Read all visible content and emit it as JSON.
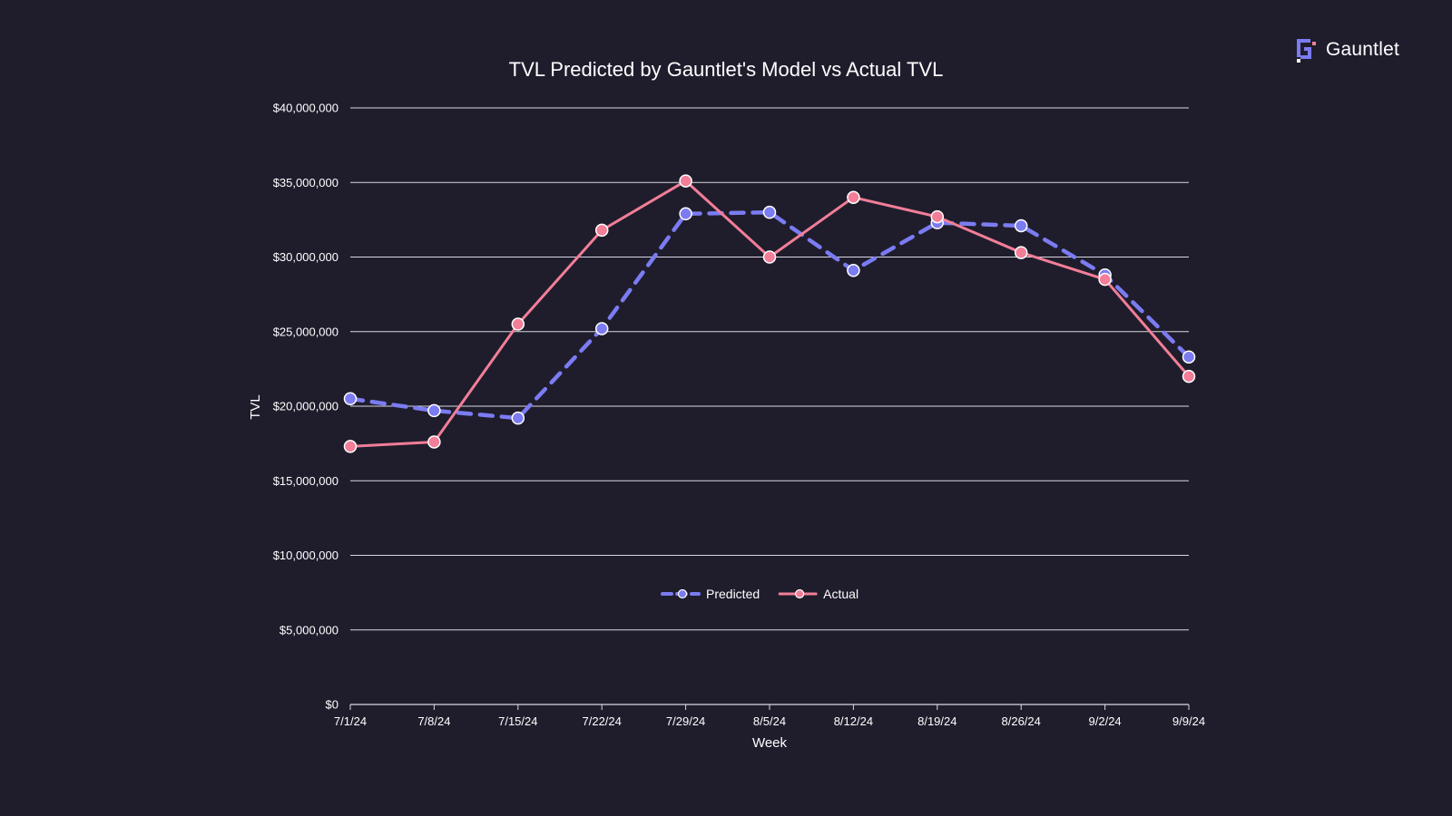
{
  "brand": {
    "name": "Gauntlet",
    "logo_icon": "gauntlet-logo-icon",
    "logo_color": "#7b7cf2",
    "logo_accent": "#f27e98"
  },
  "colors": {
    "background": "#1f1d2c",
    "grid": "#d8d8e0",
    "text": "#ffffff",
    "predicted": "#7b7cf2",
    "actual": "#f27e98"
  },
  "chart_data": {
    "type": "line",
    "title": "TVL Predicted by Gauntlet's Model vs Actual TVL",
    "xlabel": "Week",
    "ylabel": "TVL",
    "categories": [
      "7/1/24",
      "7/8/24",
      "7/15/24",
      "7/22/24",
      "7/29/24",
      "8/5/24",
      "8/12/24",
      "8/19/24",
      "8/26/24",
      "9/2/24",
      "9/9/24"
    ],
    "ylim": [
      0,
      40000000
    ],
    "yticks": [
      0,
      5000000,
      10000000,
      15000000,
      20000000,
      25000000,
      30000000,
      35000000,
      40000000
    ],
    "ytick_labels": [
      "$0",
      "$5,000,000",
      "$10,000,000",
      "$15,000,000",
      "$20,000,000",
      "$25,000,000",
      "$30,000,000",
      "$35,000,000",
      "$40,000,000"
    ],
    "grid": "horizontal",
    "legend_position": "bottom-center",
    "series": [
      {
        "name": "Predicted",
        "style": "dashed",
        "color": "#7b7cf2",
        "values": [
          20500000,
          19700000,
          19200000,
          25200000,
          32900000,
          33000000,
          29100000,
          32300000,
          32100000,
          28800000,
          23300000
        ]
      },
      {
        "name": "Actual",
        "style": "solid",
        "color": "#f27e98",
        "values": [
          17300000,
          17600000,
          25500000,
          31800000,
          35100000,
          30000000,
          34000000,
          32700000,
          30300000,
          28500000,
          22000000
        ]
      }
    ]
  }
}
